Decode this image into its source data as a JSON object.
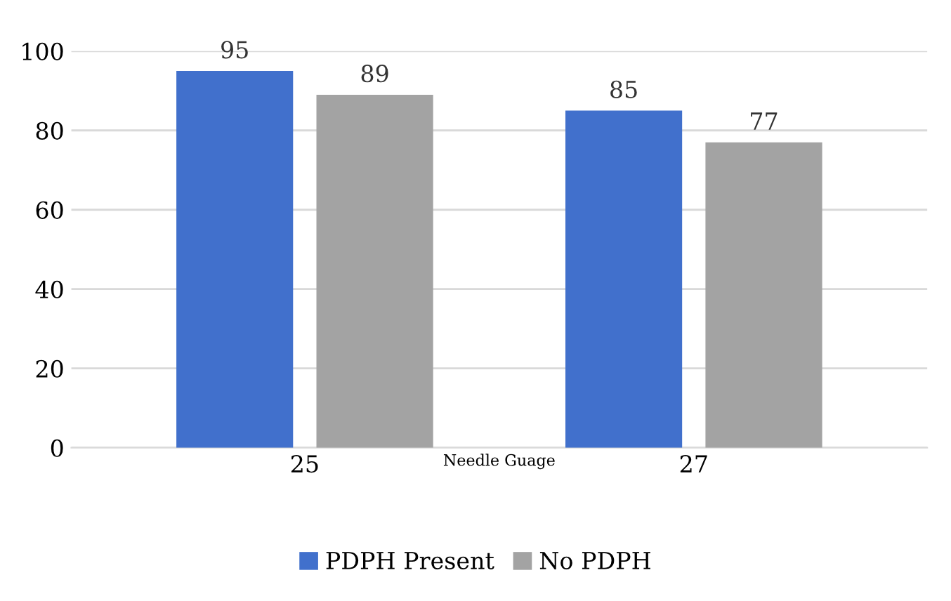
{
  "chart_data": {
    "type": "bar",
    "xlabel": "Needle Guage",
    "categories": [
      "25",
      "27"
    ],
    "series": [
      {
        "name": "PDPH Present",
        "color": "#4170cc",
        "values": [
          95,
          85
        ]
      },
      {
        "name": "No PDPH",
        "color": "#a3a3a3",
        "values": [
          89,
          77
        ]
      }
    ],
    "ylim": [
      0,
      100
    ],
    "yticks": [
      0,
      20,
      40,
      60,
      80,
      100
    ],
    "grid": "y",
    "legend": "bottom",
    "data_labels": true
  }
}
